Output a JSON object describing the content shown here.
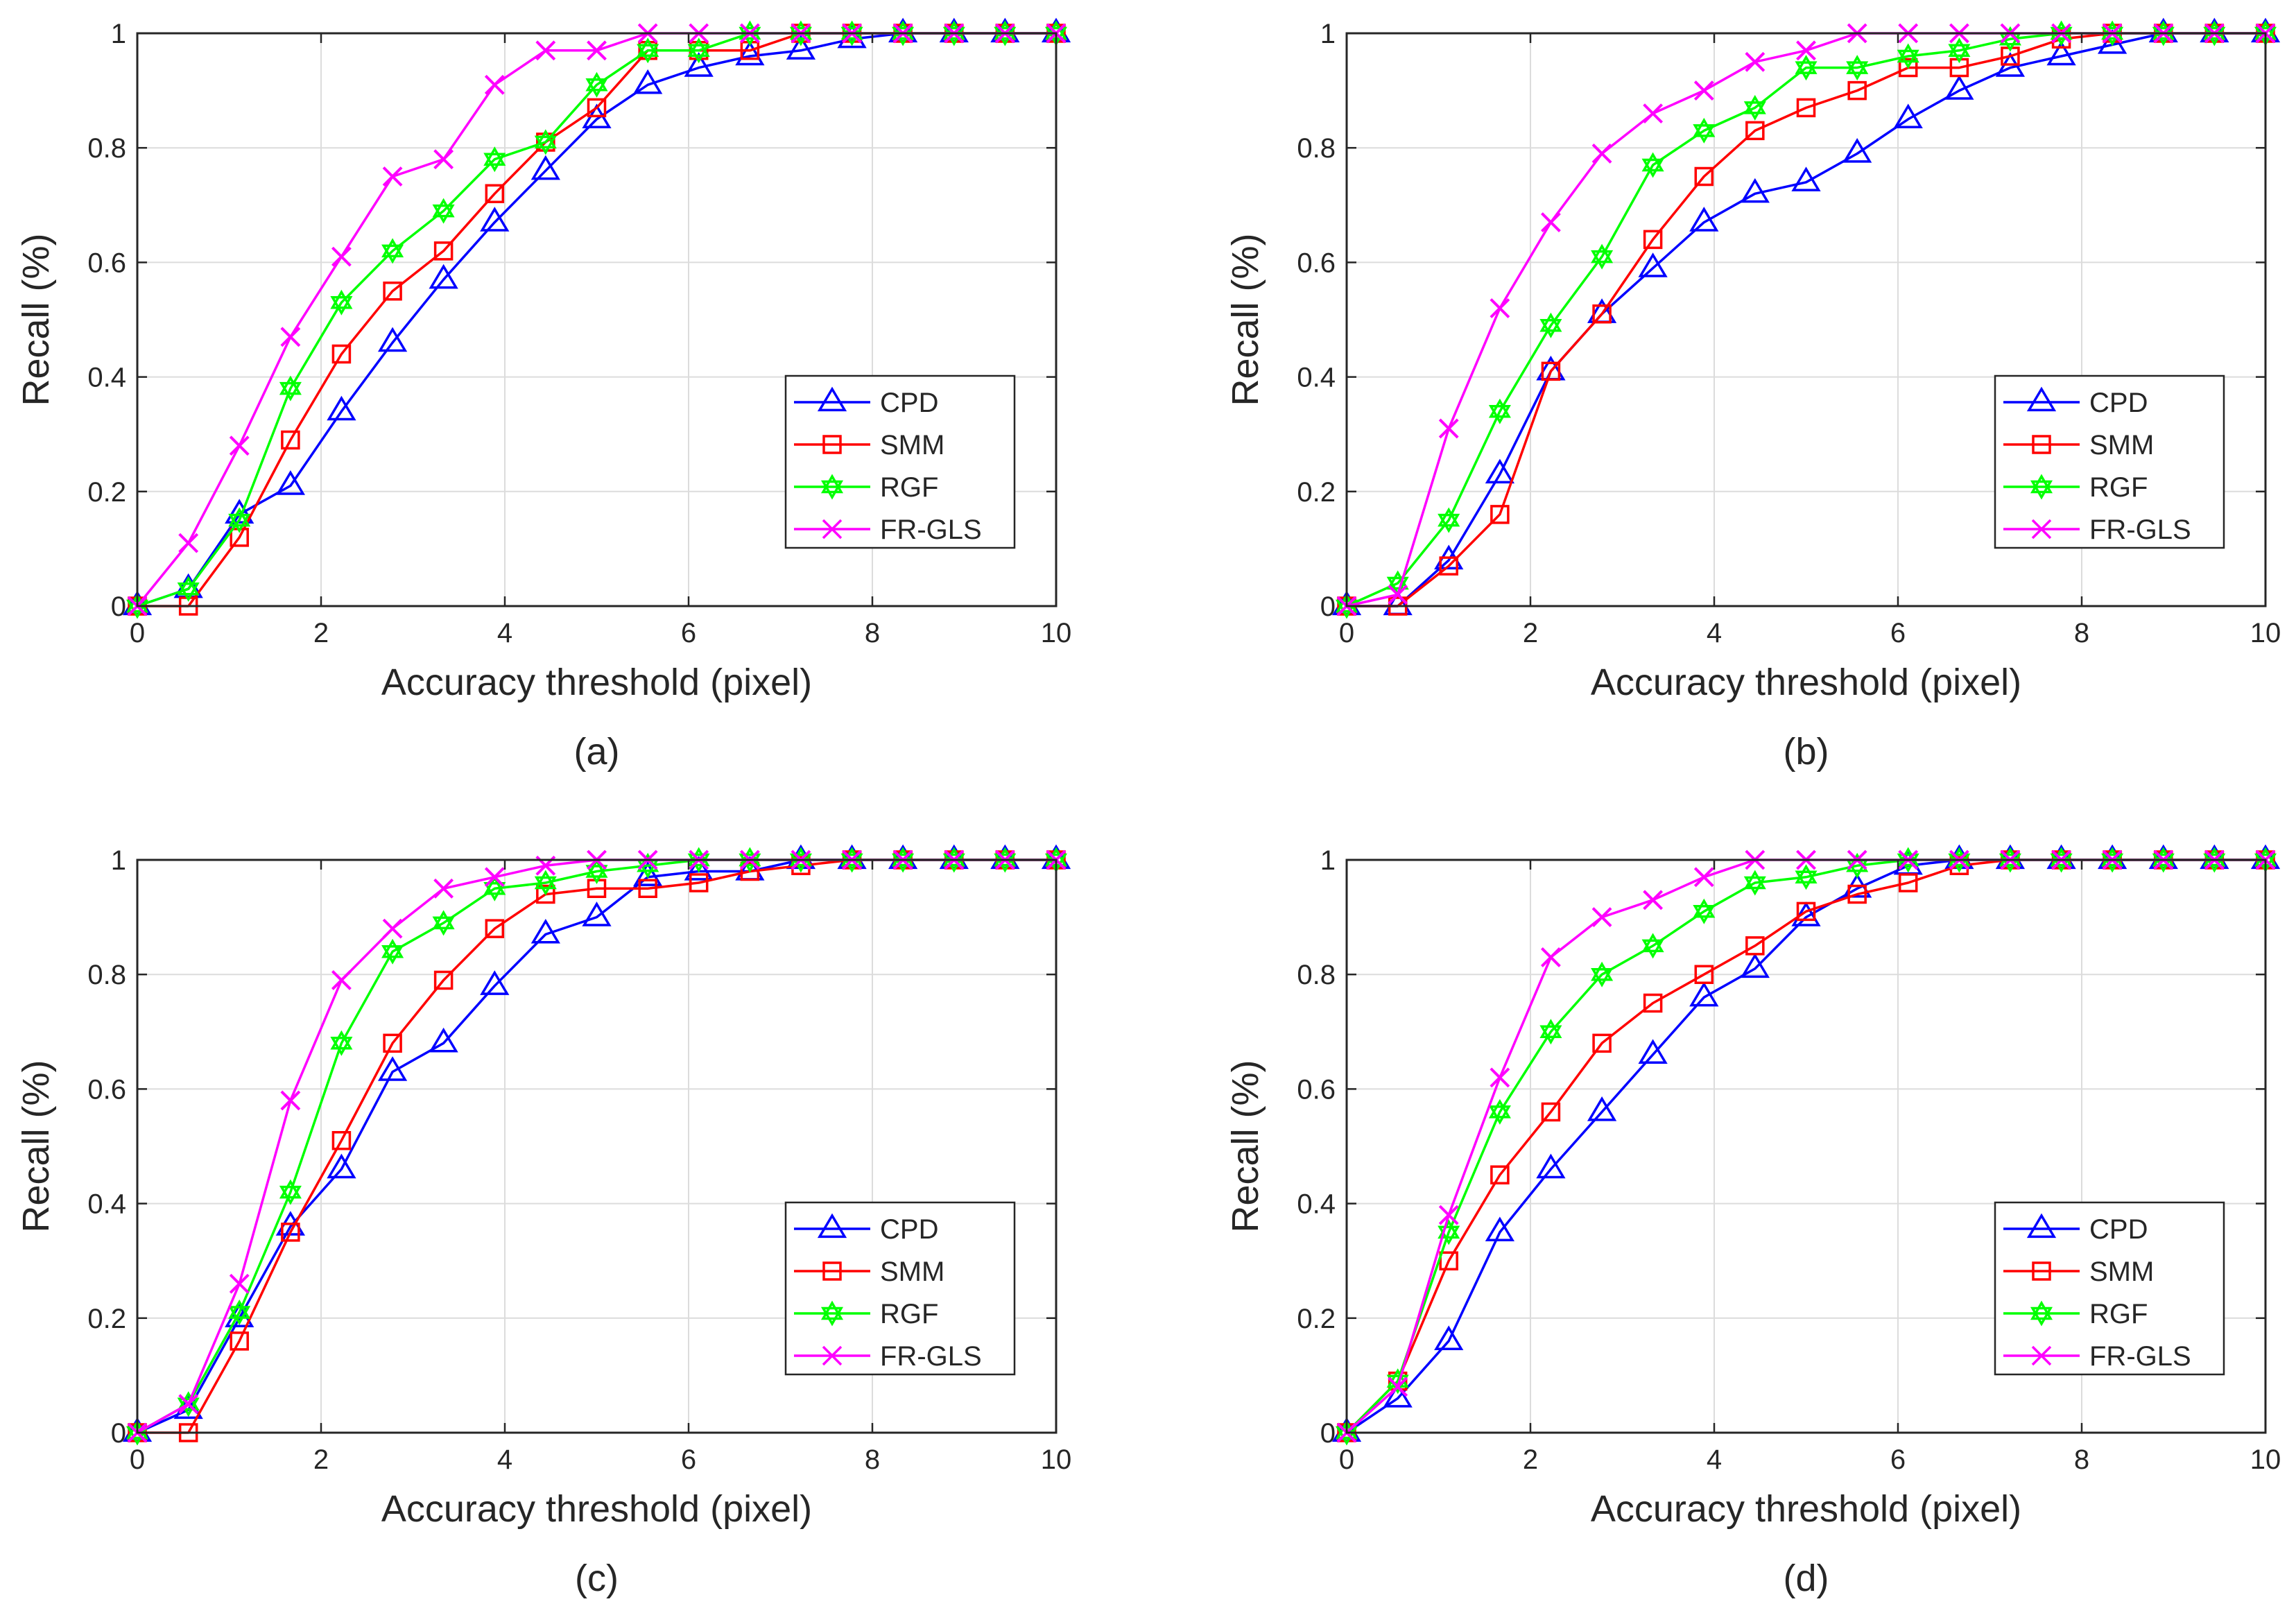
{
  "figure": {
    "captions": [
      "(a)",
      "(b)",
      "(c)",
      "(d)"
    ]
  },
  "chart_data": [
    {
      "type": "line",
      "panel": "(a)",
      "title": "",
      "xlabel": "Accuracy threshold (pixel)",
      "ylabel": "Recall (%)",
      "xlim": [
        0,
        10
      ],
      "ylim": [
        0,
        1
      ],
      "xticks": [
        0,
        2,
        4,
        6,
        8,
        10
      ],
      "xtick_labels": [
        "0",
        "2",
        "4",
        "6",
        "8",
        "10"
      ],
      "yticks": [
        0,
        0.2,
        0.4,
        0.6,
        0.8,
        1
      ],
      "ytick_labels": [
        "0",
        "0.2",
        "0.4",
        "0.6",
        "0.8",
        "1"
      ],
      "grid": true,
      "legend_position": "lower-right",
      "x": [
        0,
        0.556,
        1.111,
        1.667,
        2.222,
        2.778,
        3.333,
        3.889,
        4.444,
        5.0,
        5.556,
        6.111,
        6.667,
        7.222,
        7.778,
        8.333,
        8.889,
        9.444,
        10.0
      ],
      "series": [
        {
          "name": "CPD",
          "color": "#0000ff",
          "marker": "triangle",
          "values": [
            0,
            0.03,
            0.16,
            0.21,
            0.34,
            0.46,
            0.57,
            0.67,
            0.76,
            0.85,
            0.91,
            0.94,
            0.96,
            0.97,
            0.99,
            1,
            1,
            1,
            1
          ]
        },
        {
          "name": "SMM",
          "color": "#ff0000",
          "marker": "square",
          "values": [
            0,
            0,
            0.12,
            0.29,
            0.44,
            0.55,
            0.62,
            0.72,
            0.81,
            0.87,
            0.97,
            0.97,
            0.97,
            1,
            1,
            1,
            1,
            1,
            1
          ]
        },
        {
          "name": "RGF",
          "color": "#00ff00",
          "marker": "hexagram",
          "values": [
            0,
            0.03,
            0.15,
            0.38,
            0.53,
            0.62,
            0.69,
            0.78,
            0.81,
            0.91,
            0.97,
            0.97,
            1,
            1,
            1,
            1,
            1,
            1,
            1
          ]
        },
        {
          "name": "FR-GLS",
          "color": "#ff00ff",
          "marker": "x",
          "values": [
            0,
            0.11,
            0.28,
            0.47,
            0.61,
            0.75,
            0.78,
            0.91,
            0.97,
            0.97,
            1,
            1,
            1,
            1,
            1,
            1,
            1,
            1,
            1
          ]
        }
      ]
    },
    {
      "type": "line",
      "panel": "(b)",
      "title": "",
      "xlabel": "Accuracy threshold (pixel)",
      "ylabel": "Recall (%)",
      "xlim": [
        0,
        10
      ],
      "ylim": [
        0,
        1
      ],
      "xticks": [
        0,
        2,
        4,
        6,
        8,
        10
      ],
      "xtick_labels": [
        "0",
        "2",
        "4",
        "6",
        "8",
        "10"
      ],
      "yticks": [
        0,
        0.2,
        0.4,
        0.6,
        0.8,
        1
      ],
      "ytick_labels": [
        "0",
        "0.2",
        "0.4",
        "0.6",
        "0.8",
        "1"
      ],
      "grid": true,
      "legend_position": "lower-right",
      "x": [
        0,
        0.556,
        1.111,
        1.667,
        2.222,
        2.778,
        3.333,
        3.889,
        4.444,
        5.0,
        5.556,
        6.111,
        6.667,
        7.222,
        7.778,
        8.333,
        8.889,
        9.444,
        10.0
      ],
      "series": [
        {
          "name": "CPD",
          "color": "#0000ff",
          "marker": "triangle",
          "values": [
            0,
            0,
            0.08,
            0.23,
            0.41,
            0.51,
            0.59,
            0.67,
            0.72,
            0.74,
            0.79,
            0.85,
            0.9,
            0.94,
            0.96,
            0.98,
            1,
            1,
            1
          ]
        },
        {
          "name": "SMM",
          "color": "#ff0000",
          "marker": "square",
          "values": [
            0,
            0,
            0.07,
            0.16,
            0.41,
            0.51,
            0.64,
            0.75,
            0.83,
            0.87,
            0.9,
            0.94,
            0.94,
            0.96,
            0.99,
            1,
            1,
            1,
            1
          ]
        },
        {
          "name": "RGF",
          "color": "#00ff00",
          "marker": "hexagram",
          "values": [
            0,
            0.04,
            0.15,
            0.34,
            0.49,
            0.61,
            0.77,
            0.83,
            0.87,
            0.94,
            0.94,
            0.96,
            0.97,
            0.99,
            1,
            1,
            1,
            1,
            1
          ]
        },
        {
          "name": "FR-GLS",
          "color": "#ff00ff",
          "marker": "x",
          "values": [
            0,
            0.02,
            0.31,
            0.52,
            0.67,
            0.79,
            0.86,
            0.9,
            0.95,
            0.97,
            1,
            1,
            1,
            1,
            1,
            1,
            1,
            1,
            1
          ]
        }
      ]
    },
    {
      "type": "line",
      "panel": "(c)",
      "title": "",
      "xlabel": "Accuracy threshold (pixel)",
      "ylabel": "Recall (%)",
      "xlim": [
        0,
        10
      ],
      "ylim": [
        0,
        1
      ],
      "xticks": [
        0,
        2,
        4,
        6,
        8,
        10
      ],
      "xtick_labels": [
        "0",
        "2",
        "4",
        "6",
        "8",
        "10"
      ],
      "yticks": [
        0,
        0.2,
        0.4,
        0.6,
        0.8,
        1
      ],
      "ytick_labels": [
        "0",
        "0.2",
        "0.4",
        "0.6",
        "0.8",
        "1"
      ],
      "grid": true,
      "legend_position": "lower-right",
      "x": [
        0,
        0.556,
        1.111,
        1.667,
        2.222,
        2.778,
        3.333,
        3.889,
        4.444,
        5.0,
        5.556,
        6.111,
        6.667,
        7.222,
        7.778,
        8.333,
        8.889,
        9.444,
        10.0
      ],
      "series": [
        {
          "name": "CPD",
          "color": "#0000ff",
          "marker": "triangle",
          "values": [
            0,
            0.04,
            0.2,
            0.36,
            0.46,
            0.63,
            0.68,
            0.78,
            0.87,
            0.9,
            0.97,
            0.98,
            0.98,
            1,
            1,
            1,
            1,
            1,
            1
          ]
        },
        {
          "name": "SMM",
          "color": "#ff0000",
          "marker": "square",
          "values": [
            0,
            0,
            0.16,
            0.35,
            0.51,
            0.68,
            0.79,
            0.88,
            0.94,
            0.95,
            0.95,
            0.96,
            0.98,
            0.99,
            1,
            1,
            1,
            1,
            1
          ]
        },
        {
          "name": "RGF",
          "color": "#00ff00",
          "marker": "hexagram",
          "values": [
            0,
            0.05,
            0.21,
            0.42,
            0.68,
            0.84,
            0.89,
            0.95,
            0.96,
            0.98,
            0.99,
            1,
            1,
            1,
            1,
            1,
            1,
            1,
            1
          ]
        },
        {
          "name": "FR-GLS",
          "color": "#ff00ff",
          "marker": "x",
          "values": [
            0,
            0.05,
            0.26,
            0.58,
            0.79,
            0.88,
            0.95,
            0.97,
            0.99,
            1,
            1,
            1,
            1,
            1,
            1,
            1,
            1,
            1,
            1
          ]
        }
      ]
    },
    {
      "type": "line",
      "panel": "(d)",
      "title": "",
      "xlabel": "Accuracy threshold (pixel)",
      "ylabel": "Recall (%)",
      "xlim": [
        0,
        10
      ],
      "ylim": [
        0,
        1
      ],
      "xticks": [
        0,
        2,
        4,
        6,
        8,
        10
      ],
      "xtick_labels": [
        "0",
        "2",
        "4",
        "6",
        "8",
        "10"
      ],
      "yticks": [
        0,
        0.2,
        0.4,
        0.6,
        0.8,
        1
      ],
      "ytick_labels": [
        "0",
        "0.2",
        "0.4",
        "0.6",
        "0.8",
        "1"
      ],
      "grid": true,
      "legend_position": "lower-right",
      "x": [
        0,
        0.556,
        1.111,
        1.667,
        2.222,
        2.778,
        3.333,
        3.889,
        4.444,
        5.0,
        5.556,
        6.111,
        6.667,
        7.222,
        7.778,
        8.333,
        8.889,
        9.444,
        10.0
      ],
      "series": [
        {
          "name": "CPD",
          "color": "#0000ff",
          "marker": "triangle",
          "values": [
            0,
            0.06,
            0.16,
            0.35,
            0.46,
            0.56,
            0.66,
            0.76,
            0.81,
            0.9,
            0.95,
            0.99,
            1,
            1,
            1,
            1,
            1,
            1,
            1
          ]
        },
        {
          "name": "SMM",
          "color": "#ff0000",
          "marker": "square",
          "values": [
            0,
            0.09,
            0.3,
            0.45,
            0.56,
            0.68,
            0.75,
            0.8,
            0.85,
            0.91,
            0.94,
            0.96,
            0.99,
            1,
            1,
            1,
            1,
            1,
            1
          ]
        },
        {
          "name": "RGF",
          "color": "#00ff00",
          "marker": "hexagram",
          "values": [
            0,
            0.09,
            0.35,
            0.56,
            0.7,
            0.8,
            0.85,
            0.91,
            0.96,
            0.97,
            0.99,
            1,
            1,
            1,
            1,
            1,
            1,
            1,
            1
          ]
        },
        {
          "name": "FR-GLS",
          "color": "#ff00ff",
          "marker": "x",
          "values": [
            0,
            0.08,
            0.38,
            0.62,
            0.83,
            0.9,
            0.93,
            0.97,
            1,
            1,
            1,
            1,
            1,
            1,
            1,
            1,
            1,
            1,
            1
          ]
        }
      ]
    }
  ]
}
